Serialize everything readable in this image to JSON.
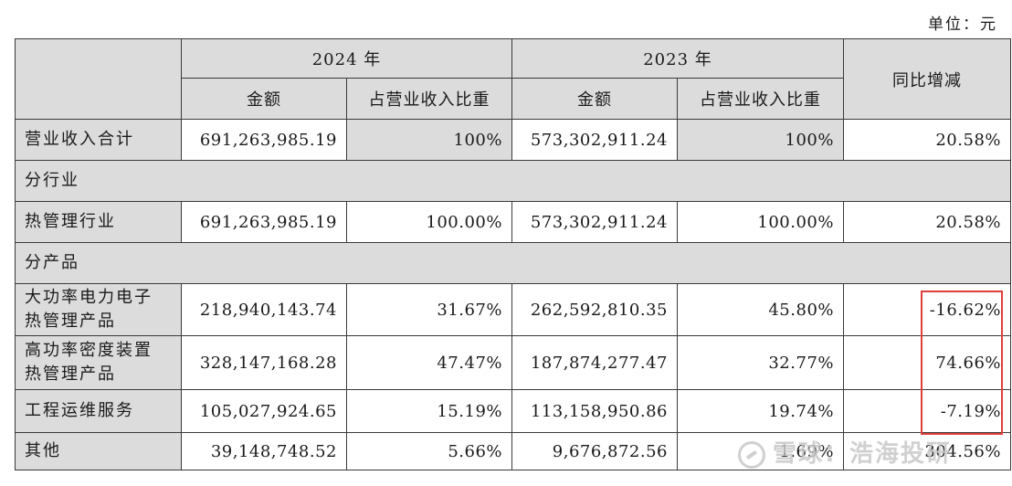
{
  "unit": "单位：元",
  "header": {
    "year_2024": "2024 年",
    "year_2023": "2023 年",
    "amount": "金额",
    "ratio": "占营业收入比重",
    "yoy": "同比增减"
  },
  "rows": [
    {
      "label": "营业收入合计",
      "amount_2024": "691,263,985.19",
      "ratio_2024": "100%",
      "amount_2023": "573,302,911.24",
      "ratio_2023": "100%",
      "yoy": "20.58%"
    },
    {
      "section": "分行业"
    },
    {
      "label": "热管理行业",
      "amount_2024": "691,263,985.19",
      "ratio_2024": "100.00%",
      "amount_2023": "573,302,911.24",
      "ratio_2023": "100.00%",
      "yoy": "20.58%"
    },
    {
      "section": "分产品"
    },
    {
      "label_line1": "大功率电力电子",
      "label_line2": "热管理产品",
      "amount_2024": "218,940,143.74",
      "ratio_2024": "31.67%",
      "amount_2023": "262,592,810.35",
      "ratio_2023": "45.80%",
      "yoy": "-16.62%"
    },
    {
      "label_line1": "高功率密度装置",
      "label_line2": "热管理产品",
      "amount_2024": "328,147,168.28",
      "ratio_2024": "47.47%",
      "amount_2023": "187,874,277.47",
      "ratio_2023": "32.77%",
      "yoy": "74.66%"
    },
    {
      "label": "工程运维服务",
      "amount_2024": "105,027,924.65",
      "ratio_2024": "15.19%",
      "amount_2023": "113,158,950.86",
      "ratio_2023": "19.74%",
      "yoy": "-7.19%"
    },
    {
      "label": "其他",
      "amount_2024": "39,148,748.52",
      "ratio_2024": "5.66%",
      "amount_2023": "9,676,872.56",
      "ratio_2023": "1.69%",
      "yoy": "304.56%"
    }
  ],
  "watermark": "雪球：浩海投研",
  "colors": {
    "header_bg": "#dcdcdc",
    "highlight": "#e0403a"
  }
}
